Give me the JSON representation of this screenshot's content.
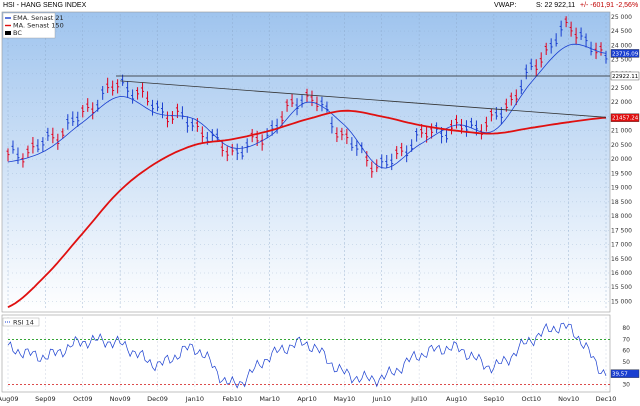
{
  "header": {
    "title": "HSI - HANG SENG INDEX",
    "vwap_label": "VWAP:",
    "s_label": "S: 22 922,11",
    "change": "+/- -601,91  -2,56%"
  },
  "chart_data": [
    {
      "type": "line",
      "panel": "price",
      "x": [
        "Aug09",
        "Sep09",
        "Oct09",
        "Nov09",
        "Dec09",
        "Jan10",
        "Feb10",
        "Mar10",
        "Apr10",
        "May10",
        "Jun10",
        "Jul10",
        "Aug10",
        "Sep10",
        "Oct10",
        "Nov10",
        "Dec10"
      ],
      "series": [
        {
          "name": "HSI",
          "style": "ohlc-bars",
          "color": "#e0001c",
          "values": [
            20100,
            20600,
            21600,
            22600,
            21800,
            21200,
            20300,
            21000,
            22200,
            20800,
            19800,
            20800,
            21100,
            21400,
            23100,
            24600,
            23500
          ]
        },
        {
          "name": "EMA. Senast 21",
          "color": "#1a3fd0",
          "values": [
            19900,
            20300,
            21300,
            22200,
            21600,
            21400,
            20400,
            20800,
            22000,
            21200,
            19700,
            20500,
            21200,
            21000,
            22700,
            24000,
            23716.09
          ]
        },
        {
          "name": "MA. Senast 150",
          "color": "#e01010",
          "values": [
            14800,
            15900,
            17400,
            18900,
            19900,
            20500,
            20700,
            21000,
            21400,
            21700,
            21500,
            21200,
            21000,
            20900,
            21100,
            21300,
            21457
          ]
        }
      ],
      "legend": [
        "EMA. Senast 21",
        "MA. Senast 150",
        "BC"
      ],
      "legend_colors": [
        "#1a3fd0",
        "#e01010",
        "#000000"
      ],
      "ylim": [
        14700,
        25100
      ],
      "yticks": [
        15000,
        15500,
        16000,
        16500,
        17000,
        17500,
        18000,
        18500,
        19000,
        19500,
        20000,
        20500,
        21000,
        21500,
        22000,
        22500,
        23000,
        23500,
        24000,
        24500,
        25000
      ],
      "ytick_labels": [
        "15 000",
        "15 500",
        "16 000",
        "16 500",
        "17 000",
        "17 500",
        "18 000",
        "18 500",
        "19 000",
        "19 500",
        "20 000",
        "20 500",
        "21 000",
        "21 500",
        "22 000",
        "22 500",
        "23 000",
        "23 500",
        "24 000",
        "24 500",
        "25 000"
      ],
      "horizontal_line": 22922.11,
      "horizontal_line_label": "22922.11",
      "trendline": [
        {
          "x": "Nov09",
          "y": 22750
        },
        {
          "x": "Dec10",
          "y": 21470
        }
      ],
      "value_tags": [
        {
          "label": "23716.09",
          "color": "#1a3fd0"
        },
        {
          "label": "21457.24",
          "color": "#e01010"
        }
      ]
    },
    {
      "type": "line",
      "panel": "rsi",
      "legend": [
        "RSI 14"
      ],
      "series": [
        {
          "name": "RSI 14",
          "color": "#1a3fd0",
          "values": [
            62,
            55,
            68,
            66,
            48,
            62,
            30,
            55,
            66,
            40,
            36,
            56,
            62,
            46,
            70,
            80,
            39.57
          ]
        }
      ],
      "ylim": [
        25,
        90
      ],
      "yticks": [
        30,
        40,
        50,
        60,
        70,
        80
      ],
      "reference_lines": [
        70,
        30
      ],
      "current_value": "39,57"
    }
  ]
}
